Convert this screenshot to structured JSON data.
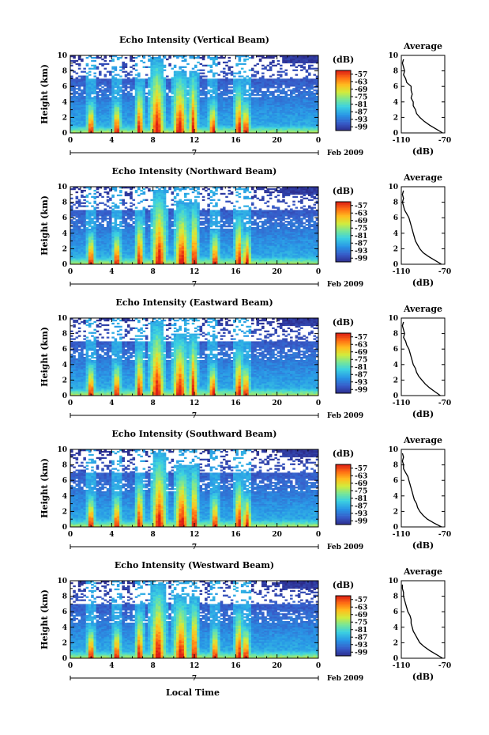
{
  "figure": {
    "xlabel": "Local Time"
  },
  "chart_data": [
    {
      "type": "heatmap",
      "title": "Echo Intensity (Vertical Beam)",
      "ylabel": "Height (km)",
      "x_ticks": [
        "0",
        "4",
        "8",
        "12",
        "16",
        "20",
        "0"
      ],
      "y_ticks": [
        "0",
        "2",
        "4",
        "6",
        "8",
        "10"
      ],
      "xlim": [
        0,
        24
      ],
      "ylim": [
        0,
        10
      ],
      "date_label": "7",
      "date_suffix": "Feb 2009",
      "colorbar": {
        "unit": "(dB)",
        "ticks": [
          "-57",
          "-63",
          "-69",
          "-75",
          "-81",
          "-87",
          "-93",
          "-99"
        ]
      },
      "convective_cells": [
        2.0,
        4.5,
        6.7,
        8.4,
        10.6,
        11.9,
        13.8,
        16.3,
        17.0
      ],
      "average_profile": {
        "title": "Average",
        "xlabel": "(dB)",
        "xlim": [
          -110,
          -70
        ],
        "ylim": [
          0,
          10
        ],
        "x_ticks": [
          "-110",
          "-70"
        ],
        "y_ticks": [
          "0",
          "2",
          "4",
          "6",
          "8",
          "10"
        ],
        "height": [
          0.0,
          0.5,
          1.0,
          1.5,
          2.0,
          2.5,
          3.0,
          3.5,
          4.0,
          4.5,
          5.0,
          5.5,
          6.0,
          6.5,
          7.0,
          7.5,
          8.0,
          8.5,
          9.0,
          9.5
        ],
        "value": [
          -72,
          -78,
          -84,
          -89,
          -93,
          -96,
          -97,
          -99,
          -99,
          -101,
          -100,
          -101,
          -101,
          -105,
          -106,
          -108,
          -107,
          -108,
          -109,
          -108
        ]
      }
    },
    {
      "type": "heatmap",
      "title": "Echo Intensity (Northward Beam)",
      "ylabel": "Height (km)",
      "x_ticks": [
        "0",
        "4",
        "8",
        "12",
        "16",
        "20",
        "0"
      ],
      "y_ticks": [
        "0",
        "2",
        "4",
        "6",
        "8",
        "10"
      ],
      "xlim": [
        0,
        24
      ],
      "ylim": [
        0,
        10
      ],
      "date_label": "7",
      "date_suffix": "Feb 2009",
      "colorbar": {
        "unit": "(dB)",
        "ticks": [
          "-57",
          "-63",
          "-69",
          "-75",
          "-81",
          "-87",
          "-93",
          "-99"
        ]
      },
      "convective_cells": [
        2.0,
        4.5,
        6.7,
        8.6,
        10.8,
        12.0,
        14.0,
        16.3,
        17.1
      ],
      "average_profile": {
        "title": "Average",
        "xlabel": "(dB)",
        "xlim": [
          -110,
          -70
        ],
        "ylim": [
          0,
          10
        ],
        "x_ticks": [
          "-110",
          "-70"
        ],
        "y_ticks": [
          "0",
          "2",
          "4",
          "6",
          "8",
          "10"
        ],
        "height": [
          0.0,
          0.5,
          1.0,
          1.5,
          2.0,
          2.5,
          3.0,
          3.5,
          4.0,
          4.5,
          5.0,
          5.5,
          6.0,
          6.5,
          7.0,
          7.5,
          8.0,
          8.5,
          9.0,
          9.5
        ],
        "value": [
          -73,
          -79,
          -85,
          -90,
          -93,
          -95,
          -97,
          -98,
          -99,
          -100,
          -101,
          -102,
          -103,
          -105,
          -107,
          -108,
          -109,
          -108,
          -109,
          -108
        ]
      }
    },
    {
      "type": "heatmap",
      "title": "Echo Intensity (Eastward Beam)",
      "ylabel": "Height (km)",
      "x_ticks": [
        "0",
        "4",
        "8",
        "12",
        "16",
        "20",
        "0"
      ],
      "y_ticks": [
        "0",
        "2",
        "4",
        "6",
        "8",
        "10"
      ],
      "xlim": [
        0,
        24
      ],
      "ylim": [
        0,
        10
      ],
      "date_label": "7",
      "date_suffix": "Feb 2009",
      "colorbar": {
        "unit": "(dB)",
        "ticks": [
          "-57",
          "-63",
          "-69",
          "-75",
          "-81",
          "-87",
          "-93",
          "-99"
        ]
      },
      "convective_cells": [
        2.0,
        4.5,
        6.7,
        8.4,
        10.6,
        11.9,
        13.8,
        16.3,
        17.0
      ],
      "average_profile": {
        "title": "Average",
        "xlabel": "(dB)",
        "xlim": [
          -110,
          -70
        ],
        "ylim": [
          0,
          10
        ],
        "x_ticks": [
          "-110",
          "-70"
        ],
        "y_ticks": [
          "0",
          "2",
          "4",
          "6",
          "8",
          "10"
        ],
        "height": [
          0.0,
          0.5,
          1.0,
          1.5,
          2.0,
          2.5,
          3.0,
          3.5,
          4.0,
          4.5,
          5.0,
          5.5,
          6.0,
          6.5,
          7.0,
          7.5,
          8.0,
          8.5,
          9.0,
          9.5
        ],
        "value": [
          -74,
          -79,
          -84,
          -88,
          -91,
          -94,
          -96,
          -97,
          -99,
          -100,
          -101,
          -102,
          -103,
          -105,
          -106,
          -108,
          -107,
          -108,
          -109,
          -108
        ]
      }
    },
    {
      "type": "heatmap",
      "title": "Echo Intensity (Southward Beam)",
      "ylabel": "Height (km)",
      "x_ticks": [
        "0",
        "4",
        "8",
        "12",
        "16",
        "20",
        "0"
      ],
      "y_ticks": [
        "0",
        "2",
        "4",
        "6",
        "8",
        "10"
      ],
      "xlim": [
        0,
        24
      ],
      "ylim": [
        0,
        10
      ],
      "date_label": "7",
      "date_suffix": "Feb 2009",
      "colorbar": {
        "unit": "(dB)",
        "ticks": [
          "-57",
          "-63",
          "-69",
          "-75",
          "-81",
          "-87",
          "-93",
          "-99"
        ]
      },
      "convective_cells": [
        2.0,
        4.5,
        6.7,
        8.6,
        10.8,
        12.0,
        14.0,
        16.3,
        17.1
      ],
      "average_profile": {
        "title": "Average",
        "xlabel": "(dB)",
        "xlim": [
          -110,
          -70
        ],
        "ylim": [
          0,
          10
        ],
        "x_ticks": [
          "-110",
          "-70"
        ],
        "y_ticks": [
          "0",
          "2",
          "4",
          "6",
          "8",
          "10"
        ],
        "height": [
          0.0,
          0.5,
          1.0,
          1.5,
          2.0,
          2.5,
          3.0,
          3.5,
          4.0,
          4.5,
          5.0,
          5.5,
          6.0,
          6.5,
          7.0,
          7.5,
          8.0,
          8.5,
          9.0,
          9.5
        ],
        "value": [
          -73,
          -80,
          -86,
          -90,
          -93,
          -95,
          -96,
          -98,
          -99,
          -100,
          -101,
          -102,
          -103,
          -104,
          -106,
          -108,
          -108,
          -109,
          -108,
          -109
        ]
      }
    },
    {
      "type": "heatmap",
      "title": "Echo Intensity (Westward Beam)",
      "ylabel": "Height (km)",
      "x_ticks": [
        "0",
        "4",
        "8",
        "12",
        "16",
        "20",
        "0"
      ],
      "y_ticks": [
        "0",
        "2",
        "4",
        "6",
        "8",
        "10"
      ],
      "xlim": [
        0,
        24
      ],
      "ylim": [
        0,
        10
      ],
      "date_label": "7",
      "date_suffix": "Feb 2009",
      "colorbar": {
        "unit": "(dB)",
        "ticks": [
          "-57",
          "-63",
          "-69",
          "-75",
          "-81",
          "-87",
          "-93",
          "-99"
        ]
      },
      "convective_cells": [
        2.0,
        4.5,
        6.7,
        8.5,
        10.7,
        12.0,
        14.0,
        16.3,
        17.0
      ],
      "average_profile": {
        "title": "Average",
        "xlabel": "(dB)",
        "xlim": [
          -110,
          -70
        ],
        "ylim": [
          0,
          10
        ],
        "x_ticks": [
          "-110",
          "-70"
        ],
        "y_ticks": [
          "0",
          "2",
          "4",
          "6",
          "8",
          "10"
        ],
        "height": [
          0.0,
          0.5,
          1.0,
          1.5,
          2.0,
          2.5,
          3.0,
          3.5,
          4.0,
          4.5,
          5.0,
          5.5,
          6.0,
          6.5,
          7.0,
          7.5,
          8.0,
          8.5,
          9.0,
          9.5
        ],
        "value": [
          -72,
          -78,
          -84,
          -89,
          -93,
          -95,
          -97,
          -99,
          -100,
          -101,
          -101,
          -102,
          -104,
          -105,
          -106,
          -107,
          -108,
          -108,
          -109,
          -109
        ]
      }
    }
  ]
}
